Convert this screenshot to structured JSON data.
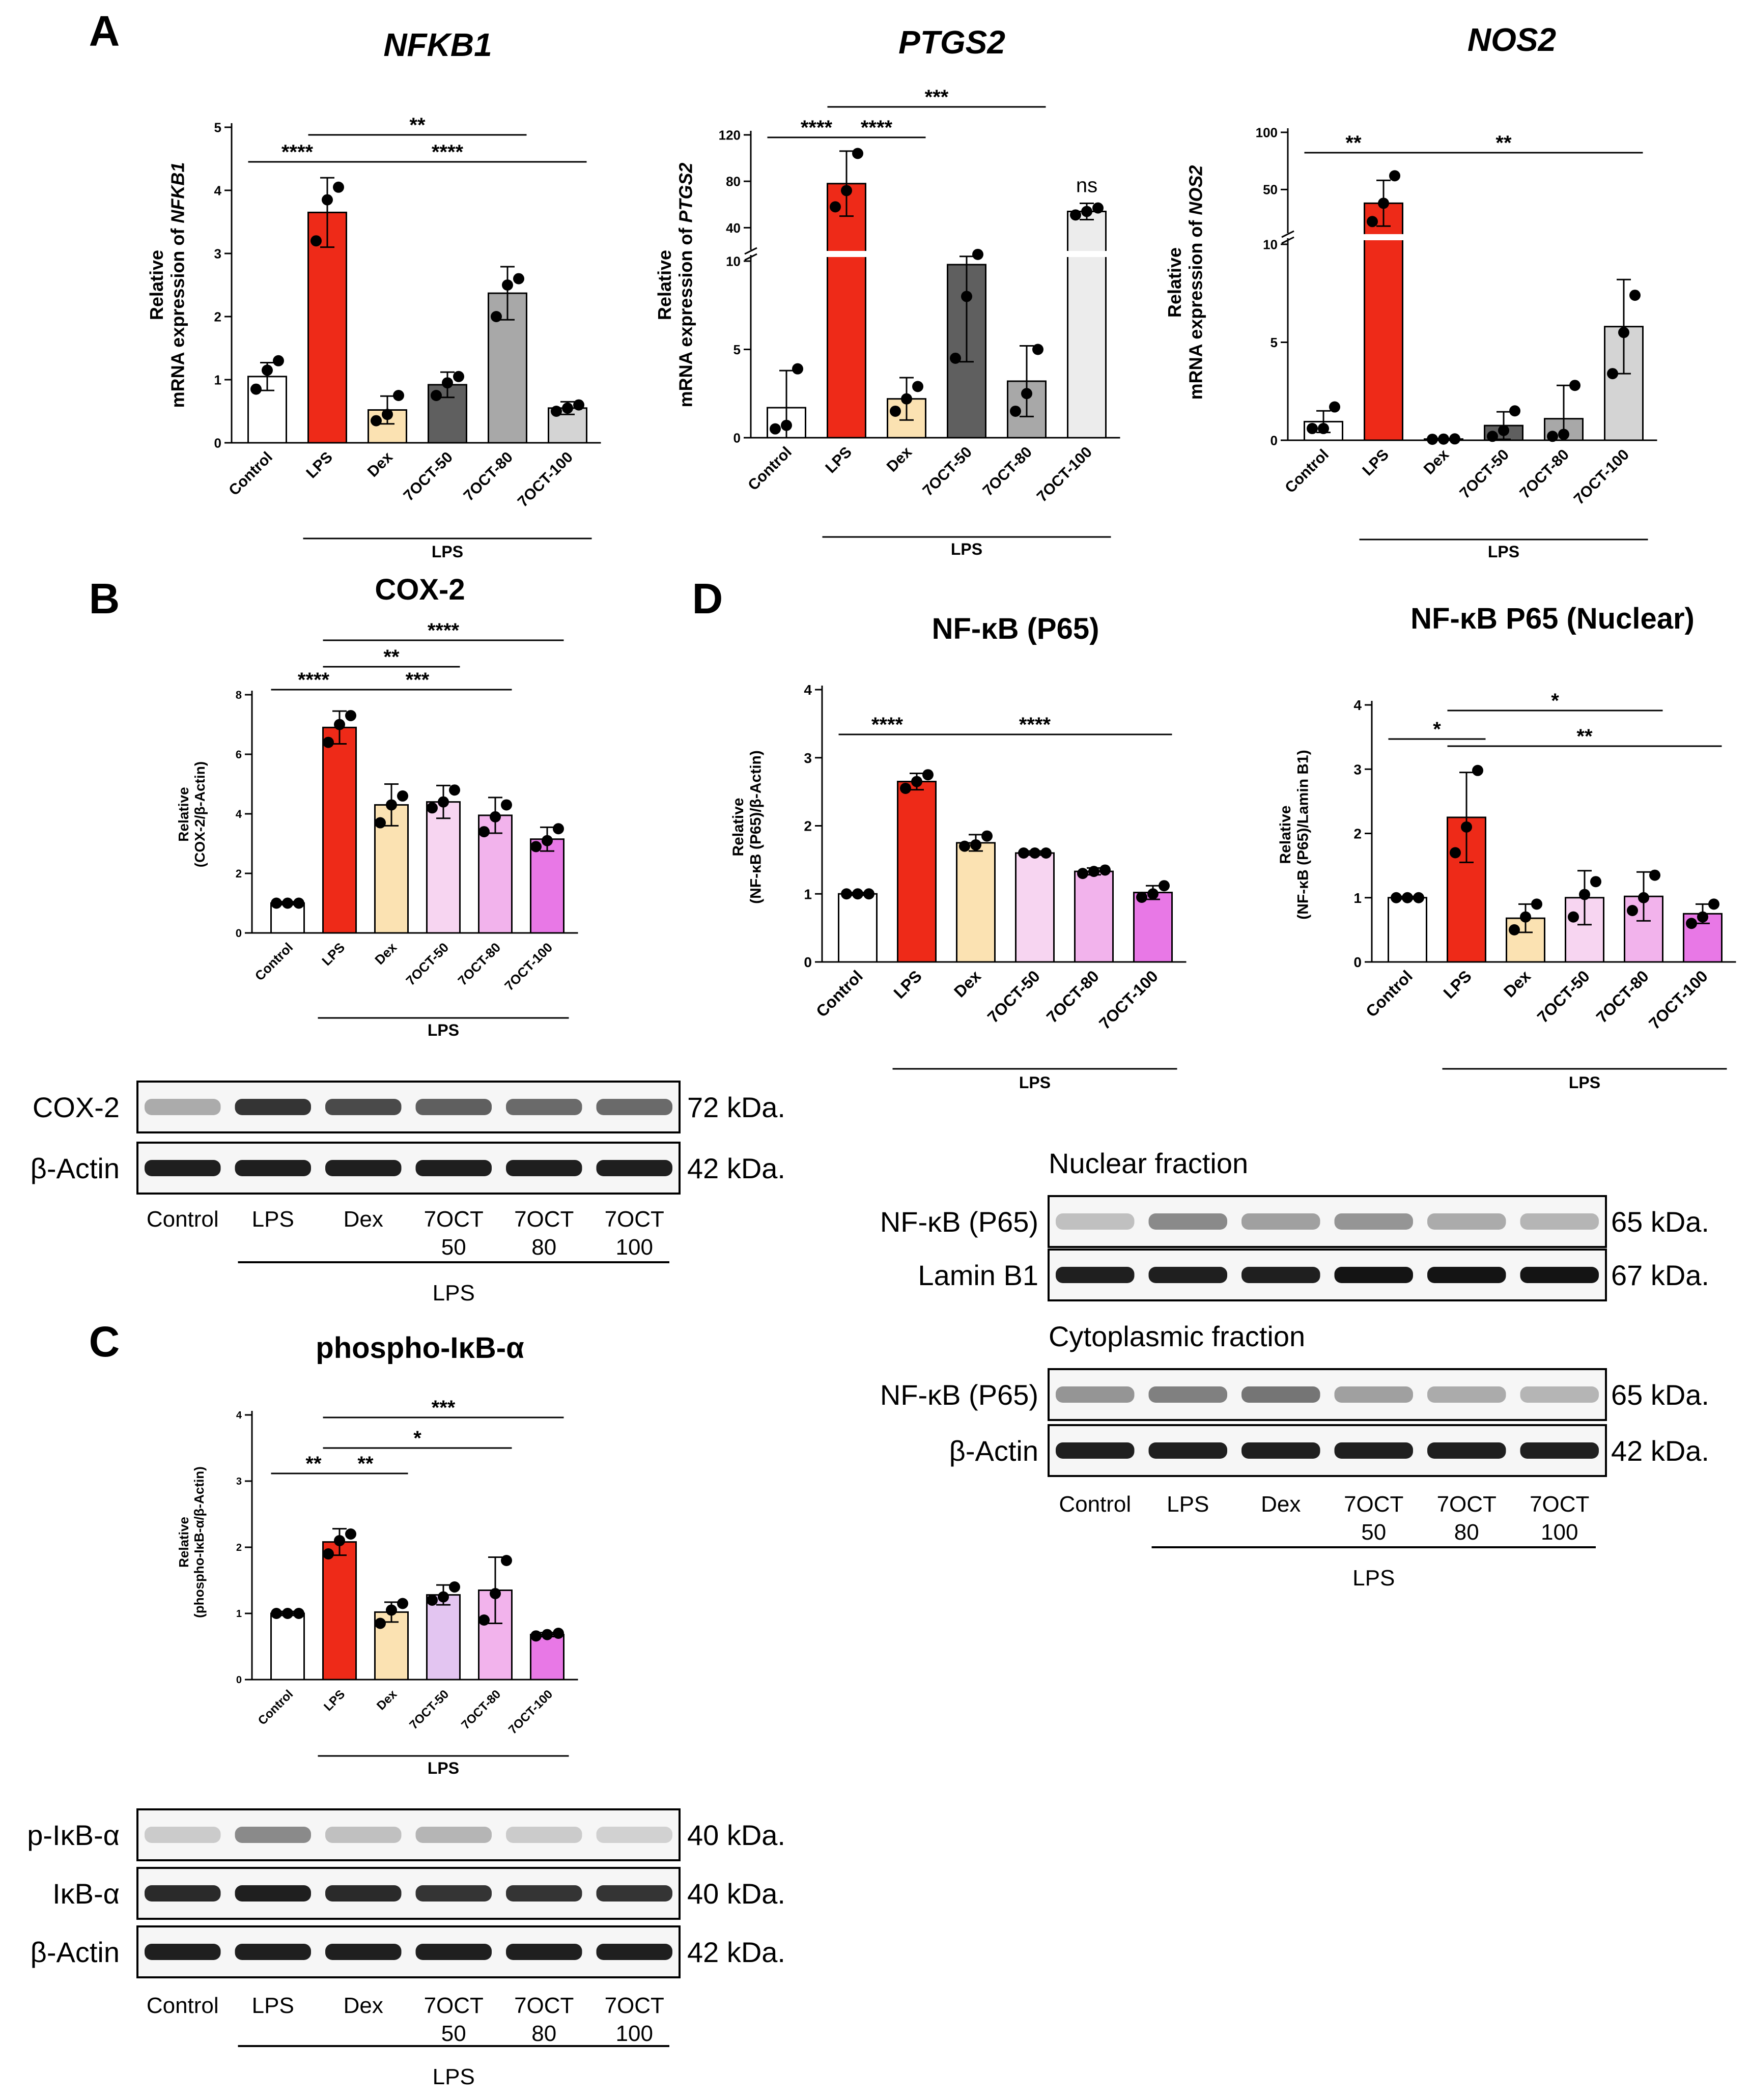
{
  "panel_letters": [
    "A",
    "B",
    "C",
    "D"
  ],
  "colors": {
    "control": "#ffffff",
    "lps": "#ee2a18",
    "dex": "#fbe2b2",
    "gray1": "#5f5f5f",
    "gray2": "#a8a8a8",
    "gray3": "#d4d4d4",
    "gray4": "#ececec",
    "pink1": "#f7d5f1",
    "pink2": "#f2b3ec",
    "pink3": "#e878e6",
    "pink4": "#e3c5f1"
  },
  "chart_data": [
    {
      "id": "nfkb1",
      "type": "bar",
      "title": "NFKB1",
      "title_italic": true,
      "ylabel": [
        "Relative",
        "mRNA expression of ",
        "NFKB1"
      ],
      "categories": [
        "Control",
        "LPS",
        "Dex",
        "7OCT-50",
        "7OCT-80",
        "7OCT-100"
      ],
      "values": [
        1.05,
        3.65,
        0.52,
        0.92,
        2.37,
        0.55
      ],
      "errors": [
        0.22,
        0.55,
        0.22,
        0.2,
        0.42,
        0.1
      ],
      "points": [
        [
          0.85,
          1.15,
          1.3
        ],
        [
          3.2,
          3.85,
          4.05
        ],
        [
          0.35,
          0.45,
          0.75
        ],
        [
          0.75,
          0.95,
          1.05
        ],
        [
          2.0,
          2.5,
          2.6
        ],
        [
          0.5,
          0.55,
          0.6
        ]
      ],
      "ylim": [
        0,
        5
      ],
      "yticks": [
        0,
        1,
        2,
        3,
        4,
        5
      ],
      "sig": [
        {
          "from": 0,
          "to": 1,
          "label": "****"
        },
        {
          "from": 1,
          "to": 4,
          "label": "**"
        },
        {
          "from": 1,
          "to": 5,
          "label": "****"
        }
      ],
      "group_label": "LPS"
    },
    {
      "id": "ptgs2",
      "type": "bar",
      "title": "PTGS2",
      "title_italic": true,
      "ylabel": [
        "Relative",
        "mRNA expression of ",
        "PTGS2"
      ],
      "categories": [
        "Control",
        "LPS",
        "Dex",
        "7OCT-50",
        "7OCT-80",
        "7OCT-100"
      ],
      "values": [
        1.7,
        78,
        2.2,
        9.8,
        3.2,
        54
      ],
      "errors": [
        2.1,
        28,
        1.2,
        5.5,
        2.0,
        7
      ],
      "points": [
        [
          0.5,
          0.7,
          3.9
        ],
        [
          58,
          72,
          104
        ],
        [
          1.5,
          2.2,
          2.9
        ],
        [
          4.5,
          8.0,
          17.0
        ],
        [
          1.5,
          2.5,
          5.0
        ],
        [
          51,
          54,
          57
        ]
      ],
      "ylim": [
        0,
        120
      ],
      "yticks": [
        0,
        5,
        10,
        40,
        80,
        120
      ],
      "axis_break": {
        "low_max": 10,
        "high_min": 20
      },
      "sig": [
        {
          "from": 0,
          "to": 1,
          "label": "****"
        },
        {
          "from": 1,
          "to": 2,
          "label": "****"
        },
        {
          "from": 1,
          "to": 4,
          "label": "***"
        }
      ],
      "annotations": [
        {
          "index": 5,
          "label": "ns"
        }
      ],
      "group_label": "LPS"
    },
    {
      "id": "nos2",
      "type": "bar",
      "title": "NOS2",
      "title_italic": true,
      "ylabel": [
        "Relative",
        "mRNA expression of ",
        "NOS2"
      ],
      "categories": [
        "Control",
        "LPS",
        "Dex",
        "7OCT-50",
        "7OCT-80",
        "7OCT-100"
      ],
      "values": [
        0.95,
        38,
        0.06,
        0.75,
        1.1,
        5.8
      ],
      "errors": [
        0.55,
        20,
        0.03,
        0.7,
        1.7,
        2.4
      ],
      "points": [
        [
          0.6,
          0.6,
          1.7
        ],
        [
          22,
          38,
          62
        ],
        [
          0.05,
          0.06,
          0.07
        ],
        [
          0.2,
          0.5,
          1.5
        ],
        [
          0.2,
          0.3,
          2.8
        ],
        [
          3.4,
          5.5,
          7.4
        ]
      ],
      "ylim": [
        0,
        100
      ],
      "yticks": [
        0,
        5,
        10,
        50,
        100
      ],
      "axis_break": {
        "low_max": 10,
        "high_min": 11
      },
      "sig": [
        {
          "from": 0,
          "to": 1,
          "label": "**"
        },
        {
          "from": 1,
          "to": 5,
          "label": "**"
        }
      ],
      "group_label": "LPS"
    },
    {
      "id": "cox2",
      "type": "bar",
      "title": "COX-2",
      "title_italic": false,
      "ylabel": [
        "Relative",
        "(COX-2/β-Actin)"
      ],
      "categories": [
        "Control",
        "LPS",
        "Dex",
        "7OCT-50",
        "7OCT-80",
        "7OCT-100"
      ],
      "values": [
        1.0,
        6.9,
        4.3,
        4.4,
        3.95,
        3.15
      ],
      "errors": [
        0.05,
        0.55,
        0.7,
        0.55,
        0.6,
        0.4
      ],
      "points": [
        [
          1.0,
          1.0,
          1.0
        ],
        [
          6.4,
          7.0,
          7.3
        ],
        [
          3.7,
          4.3,
          4.6
        ],
        [
          4.2,
          4.4,
          4.8
        ],
        [
          3.4,
          3.9,
          4.3
        ],
        [
          2.9,
          3.1,
          3.5
        ]
      ],
      "ylim": [
        0,
        8
      ],
      "yticks": [
        0,
        2,
        4,
        6,
        8
      ],
      "sig": [
        {
          "from": 0,
          "to": 1,
          "label": "****"
        },
        {
          "from": 1,
          "to": 3,
          "label": "**"
        },
        {
          "from": 1,
          "to": 4,
          "label": "***"
        },
        {
          "from": 1,
          "to": 5,
          "label": "****"
        }
      ],
      "group_label": "LPS"
    },
    {
      "id": "pikba",
      "type": "bar",
      "title": "phospho-IκB-α",
      "title_italic": false,
      "ylabel": [
        "Relative",
        "(phospho-IκB-α/β-Actin)"
      ],
      "categories": [
        "Control",
        "LPS",
        "Dex",
        "7OCT-50",
        "7OCT-80",
        "7OCT-100"
      ],
      "values": [
        1.0,
        2.08,
        1.02,
        1.28,
        1.35,
        0.68
      ],
      "errors": [
        0.03,
        0.2,
        0.15,
        0.15,
        0.5,
        0.03
      ],
      "points": [
        [
          1.0,
          1.0,
          1.0
        ],
        [
          1.9,
          2.1,
          2.2
        ],
        [
          0.85,
          1.05,
          1.15
        ],
        [
          1.2,
          1.25,
          1.4
        ],
        [
          0.9,
          1.3,
          1.8
        ],
        [
          0.66,
          0.68,
          0.7
        ]
      ],
      "ylim": [
        0,
        4
      ],
      "yticks": [
        0,
        1,
        2,
        3,
        4
      ],
      "sig": [
        {
          "from": 0,
          "to": 1,
          "label": "**"
        },
        {
          "from": 1,
          "to": 2,
          "label": "**"
        },
        {
          "from": 1,
          "to": 4,
          "label": "*"
        },
        {
          "from": 1,
          "to": 5,
          "label": "***"
        }
      ],
      "group_label": "LPS"
    },
    {
      "id": "p65",
      "type": "bar",
      "title": "NF-κB (P65)",
      "title_italic": false,
      "ylabel": [
        "Relative",
        "(NF-κB (P65)/β-Actin)"
      ],
      "categories": [
        "Control",
        "LPS",
        "Dex",
        "7OCT-50",
        "7OCT-80",
        "7OCT-100"
      ],
      "values": [
        1.0,
        2.65,
        1.75,
        1.6,
        1.33,
        1.02
      ],
      "errors": [
        0.02,
        0.12,
        0.12,
        0.03,
        0.05,
        0.1
      ],
      "points": [
        [
          1.0,
          1.0,
          1.0
        ],
        [
          2.55,
          2.65,
          2.75
        ],
        [
          1.7,
          1.72,
          1.85
        ],
        [
          1.6,
          1.6,
          1.6
        ],
        [
          1.3,
          1.33,
          1.35
        ],
        [
          0.95,
          1.0,
          1.12
        ]
      ],
      "ylim": [
        0,
        4
      ],
      "yticks": [
        0,
        1,
        2,
        3,
        4
      ],
      "sig": [
        {
          "from": 0,
          "to": 1,
          "label": "****"
        },
        {
          "from": 1,
          "to": 5,
          "label": "****"
        }
      ],
      "group_label": "LPS"
    },
    {
      "id": "p65n",
      "type": "bar",
      "title": "NF-κB P65 (Nuclear)",
      "title_italic": false,
      "ylabel": [
        "Relative",
        "(NF-κB (P65)/Lamin B1)"
      ],
      "categories": [
        "Control",
        "LPS",
        "Dex",
        "7OCT-50",
        "7OCT-80",
        "7OCT-100"
      ],
      "values": [
        1.0,
        2.25,
        0.68,
        1.0,
        1.02,
        0.75
      ],
      "errors": [
        0.02,
        0.7,
        0.22,
        0.42,
        0.38,
        0.15
      ],
      "points": [
        [
          1.0,
          1.0,
          1.0
        ],
        [
          1.7,
          2.1,
          2.98
        ],
        [
          0.5,
          0.7,
          0.9
        ],
        [
          0.7,
          1.05,
          1.25
        ],
        [
          0.8,
          1.0,
          1.35
        ],
        [
          0.6,
          0.7,
          0.9
        ]
      ],
      "ylim": [
        0,
        4
      ],
      "yticks": [
        0,
        1,
        2,
        3,
        4
      ],
      "sig": [
        {
          "from": 0,
          "to": 1,
          "label": "*"
        },
        {
          "from": 1,
          "to": 4,
          "label": "*"
        },
        {
          "from": 1,
          "to": 5,
          "label": "**"
        }
      ],
      "group_label": "LPS"
    }
  ],
  "blots": [
    {
      "id": "blot-b",
      "rows": [
        {
          "label": "COX-2",
          "kda": "72 kDa.",
          "intensity": [
            0.3,
            0.85,
            0.75,
            0.65,
            0.6,
            0.6
          ]
        },
        {
          "label": "β-Actin",
          "kda": "42 kDa.",
          "intensity": [
            0.95,
            0.95,
            0.95,
            0.95,
            0.95,
            0.95
          ]
        }
      ],
      "lanes": [
        [
          "Control"
        ],
        [
          "LPS"
        ],
        [
          "Dex"
        ],
        [
          "7OCT",
          "50"
        ],
        [
          "7OCT",
          "80"
        ],
        [
          "7OCT",
          "100"
        ]
      ],
      "group_label": "LPS"
    },
    {
      "id": "blot-c",
      "rows": [
        {
          "label": "p-IκB-α",
          "kda": "40 kDa.",
          "intensity": [
            0.15,
            0.45,
            0.2,
            0.25,
            0.15,
            0.12
          ]
        },
        {
          "label": "IκB-α",
          "kda": "40 kDa.",
          "intensity": [
            0.9,
            0.95,
            0.9,
            0.85,
            0.85,
            0.85
          ]
        },
        {
          "label": "β-Actin",
          "kda": "42 kDa.",
          "intensity": [
            0.95,
            0.95,
            0.95,
            0.95,
            0.95,
            0.95
          ]
        }
      ],
      "lanes": [
        [
          "Control"
        ],
        [
          "LPS"
        ],
        [
          "Dex"
        ],
        [
          "7OCT",
          "50"
        ],
        [
          "7OCT",
          "80"
        ],
        [
          "7OCT",
          "100"
        ]
      ],
      "group_label": "LPS"
    },
    {
      "id": "blot-d",
      "section_titles": [
        "Nuclear fraction",
        "Cytoplasmic fraction"
      ],
      "rows": [
        {
          "label": "NF-κB (P65)",
          "kda": "65 kDa.",
          "intensity": [
            0.2,
            0.45,
            0.35,
            0.4,
            0.3,
            0.25
          ]
        },
        {
          "label": "Lamin B1",
          "kda": "67 kDa.",
          "intensity": [
            0.95,
            0.95,
            0.95,
            1.0,
            1.0,
            1.0
          ]
        },
        {
          "label": "NF-κB (P65)",
          "kda": "65 kDa.",
          "intensity": [
            0.4,
            0.5,
            0.55,
            0.35,
            0.3,
            0.25
          ]
        },
        {
          "label": "β-Actin",
          "kda": "42 kDa.",
          "intensity": [
            0.95,
            0.95,
            0.95,
            0.95,
            0.95,
            0.95
          ]
        }
      ],
      "lanes": [
        [
          "Control"
        ],
        [
          "LPS"
        ],
        [
          "Dex"
        ],
        [
          "7OCT",
          "50"
        ],
        [
          "7OCT",
          "80"
        ],
        [
          "7OCT",
          "100"
        ]
      ],
      "group_label": "LPS"
    }
  ]
}
